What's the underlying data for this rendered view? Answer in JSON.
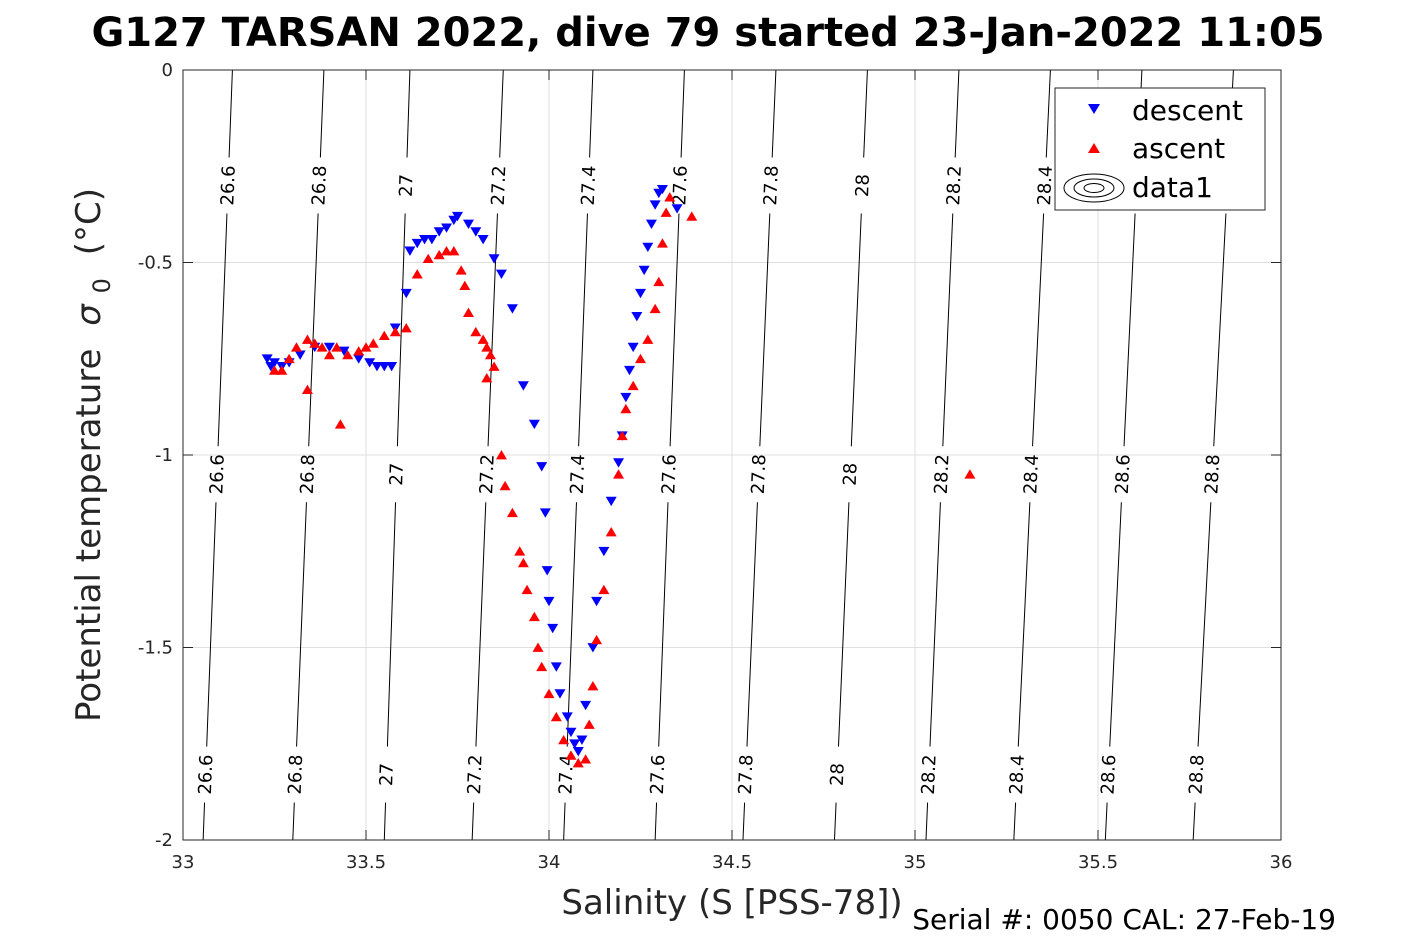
{
  "chart_data": {
    "type": "scatter",
    "title": "G127 TARSAN 2022, dive 79 started 23-Jan-2022 11:05",
    "xlabel": "Salinity (S [PSS-78])",
    "ylabel": "Potential temperature",
    "ylabel_symbol": "σ",
    "ylabel_subscript": "0",
    "ylabel_unit": "(°C)",
    "footer": "Serial #: 0050  CAL: 27-Feb-19",
    "xlim": [
      33,
      36
    ],
    "ylim": [
      -2,
      0
    ],
    "xticks": [
      33,
      33.5,
      34,
      34.5,
      35,
      35.5,
      36
    ],
    "xtick_labels": [
      "33",
      "33.5",
      "34",
      "34.5",
      "35",
      "35.5",
      "36"
    ],
    "yticks": [
      0,
      -0.5,
      -1,
      -1.5,
      -2
    ],
    "ytick_labels": [
      "0",
      "-0.5",
      "-1",
      "-1.5",
      "-2"
    ],
    "grid": true,
    "legend_position": "top-right",
    "colors": {
      "descent": "#0000ff",
      "ascent": "#ff0000",
      "contour": "#000000",
      "grid": "#dfdfdf",
      "axis": "#262626"
    },
    "contours": {
      "levels": [
        26.6,
        26.8,
        27,
        27.2,
        27.4,
        27.6,
        27.8,
        28,
        28.2,
        28.4,
        28.6,
        28.8
      ],
      "level_labels": [
        "26.6",
        "26.8",
        "27",
        "27.2",
        "27.4",
        "27.6",
        "27.8",
        "28",
        "28.2",
        "28.4",
        "28.6",
        "28.8"
      ],
      "salinity_at_top": [
        33.135,
        33.385,
        33.62,
        33.875,
        34.12,
        34.37,
        34.62,
        34.87,
        35.12,
        35.37,
        35.62,
        35.87
      ],
      "salinity_at_bottom": [
        33.055,
        33.3,
        33.55,
        33.79,
        34.04,
        34.29,
        34.53,
        34.78,
        35.03,
        35.27,
        35.52,
        35.76
      ],
      "label_temperatures": [
        -0.3,
        -1.05,
        -1.83
      ]
    },
    "series": [
      {
        "name": "descent",
        "marker": "triangle-down",
        "color": "#0000ff",
        "points": [
          [
            33.23,
            -0.75
          ],
          [
            33.24,
            -0.77
          ],
          [
            33.25,
            -0.76
          ],
          [
            33.27,
            -0.77
          ],
          [
            33.29,
            -0.76
          ],
          [
            33.32,
            -0.74
          ],
          [
            33.36,
            -0.72
          ],
          [
            33.4,
            -0.72
          ],
          [
            33.44,
            -0.73
          ],
          [
            33.48,
            -0.75
          ],
          [
            33.51,
            -0.76
          ],
          [
            33.53,
            -0.77
          ],
          [
            33.55,
            -0.77
          ],
          [
            33.57,
            -0.77
          ],
          [
            33.58,
            -0.67
          ],
          [
            33.61,
            -0.58
          ],
          [
            33.62,
            -0.47
          ],
          [
            33.64,
            -0.45
          ],
          [
            33.66,
            -0.44
          ],
          [
            33.68,
            -0.44
          ],
          [
            33.7,
            -0.42
          ],
          [
            33.72,
            -0.41
          ],
          [
            33.74,
            -0.39
          ],
          [
            33.75,
            -0.38
          ],
          [
            33.78,
            -0.4
          ],
          [
            33.8,
            -0.42
          ],
          [
            33.82,
            -0.44
          ],
          [
            33.85,
            -0.49
          ],
          [
            33.87,
            -0.53
          ],
          [
            33.9,
            -0.62
          ],
          [
            33.93,
            -0.82
          ],
          [
            33.96,
            -0.92
          ],
          [
            33.98,
            -1.03
          ],
          [
            33.99,
            -1.15
          ],
          [
            33.995,
            -1.3
          ],
          [
            34.0,
            -1.38
          ],
          [
            34.01,
            -1.45
          ],
          [
            34.02,
            -1.55
          ],
          [
            34.03,
            -1.62
          ],
          [
            34.05,
            -1.68
          ],
          [
            34.06,
            -1.72
          ],
          [
            34.07,
            -1.75
          ],
          [
            34.08,
            -1.77
          ],
          [
            34.09,
            -1.74
          ],
          [
            34.1,
            -1.65
          ],
          [
            34.12,
            -1.5
          ],
          [
            34.13,
            -1.38
          ],
          [
            34.15,
            -1.25
          ],
          [
            34.17,
            -1.12
          ],
          [
            34.19,
            -1.02
          ],
          [
            34.2,
            -0.95
          ],
          [
            34.21,
            -0.85
          ],
          [
            34.22,
            -0.78
          ],
          [
            34.23,
            -0.72
          ],
          [
            34.24,
            -0.64
          ],
          [
            34.25,
            -0.58
          ],
          [
            34.26,
            -0.52
          ],
          [
            34.27,
            -0.46
          ],
          [
            34.28,
            -0.4
          ],
          [
            34.29,
            -0.35
          ],
          [
            34.3,
            -0.32
          ],
          [
            34.31,
            -0.31
          ],
          [
            34.35,
            -0.36
          ]
        ]
      },
      {
        "name": "ascent",
        "marker": "triangle-up",
        "color": "#ff0000",
        "points": [
          [
            33.25,
            -0.78
          ],
          [
            33.27,
            -0.78
          ],
          [
            33.29,
            -0.75
          ],
          [
            33.31,
            -0.72
          ],
          [
            33.34,
            -0.7
          ],
          [
            33.36,
            -0.71
          ],
          [
            33.38,
            -0.72
          ],
          [
            33.4,
            -0.74
          ],
          [
            33.42,
            -0.72
          ],
          [
            33.45,
            -0.74
          ],
          [
            33.48,
            -0.73
          ],
          [
            33.5,
            -0.72
          ],
          [
            33.52,
            -0.71
          ],
          [
            33.55,
            -0.69
          ],
          [
            33.58,
            -0.68
          ],
          [
            33.61,
            -0.67
          ],
          [
            33.64,
            -0.53
          ],
          [
            33.67,
            -0.49
          ],
          [
            33.7,
            -0.48
          ],
          [
            33.72,
            -0.47
          ],
          [
            33.74,
            -0.47
          ],
          [
            33.76,
            -0.52
          ],
          [
            33.77,
            -0.56
          ],
          [
            33.78,
            -0.63
          ],
          [
            33.8,
            -0.68
          ],
          [
            33.82,
            -0.7
          ],
          [
            33.83,
            -0.72
          ],
          [
            33.84,
            -0.74
          ],
          [
            33.85,
            -0.77
          ],
          [
            33.83,
            -0.8
          ],
          [
            33.34,
            -0.83
          ],
          [
            33.43,
            -0.92
          ],
          [
            33.87,
            -1.0
          ],
          [
            33.88,
            -1.08
          ],
          [
            33.9,
            -1.15
          ],
          [
            33.92,
            -1.25
          ],
          [
            33.93,
            -1.28
          ],
          [
            33.94,
            -1.35
          ],
          [
            33.96,
            -1.42
          ],
          [
            33.97,
            -1.5
          ],
          [
            33.98,
            -1.55
          ],
          [
            34.0,
            -1.62
          ],
          [
            34.02,
            -1.68
          ],
          [
            34.04,
            -1.74
          ],
          [
            34.06,
            -1.78
          ],
          [
            34.08,
            -1.8
          ],
          [
            34.1,
            -1.79
          ],
          [
            34.11,
            -1.7
          ],
          [
            34.12,
            -1.6
          ],
          [
            34.13,
            -1.48
          ],
          [
            34.15,
            -1.35
          ],
          [
            34.17,
            -1.2
          ],
          [
            34.19,
            -1.05
          ],
          [
            34.2,
            -0.95
          ],
          [
            34.21,
            -0.88
          ],
          [
            34.23,
            -0.82
          ],
          [
            34.25,
            -0.75
          ],
          [
            34.27,
            -0.7
          ],
          [
            34.29,
            -0.62
          ],
          [
            34.3,
            -0.55
          ],
          [
            34.31,
            -0.45
          ],
          [
            34.32,
            -0.37
          ],
          [
            34.33,
            -0.33
          ],
          [
            34.39,
            -0.38
          ],
          [
            35.15,
            -1.05
          ]
        ]
      },
      {
        "name": "data1",
        "marker": "contour",
        "color": "#000000",
        "points": []
      }
    ]
  }
}
